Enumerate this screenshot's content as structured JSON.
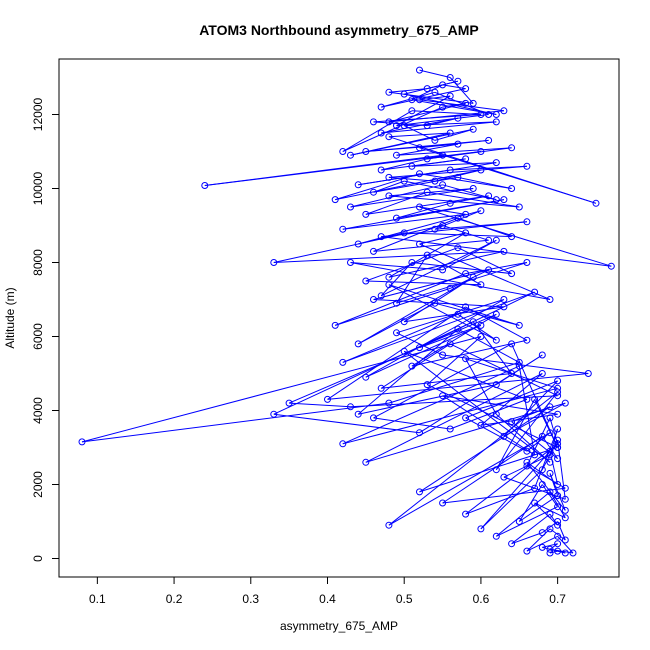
{
  "chart_data": {
    "type": "line",
    "title": "ATOM3 Northbound asymmetry_675_AMP",
    "xlabel": "asymmetry_675_AMP",
    "ylabel": "Altitude (m)",
    "xlim": [
      0.05,
      0.78
    ],
    "ylim": [
      -500,
      13500
    ],
    "x_ticks": [
      0.1,
      0.2,
      0.3,
      0.4,
      0.5,
      0.6,
      0.7
    ],
    "x_tick_labels": [
      "0.1",
      "0.2",
      "0.3",
      "0.4",
      "0.5",
      "0.6",
      "0.7"
    ],
    "y_ticks": [
      0,
      2000,
      4000,
      6000,
      8000,
      10000,
      12000
    ],
    "y_tick_labels": [
      "0",
      "2000",
      "4000",
      "6000",
      "8000",
      "10000",
      "12000"
    ],
    "grid": false,
    "legend": "none",
    "series_color": "#0000ff",
    "marker": "open-circle",
    "series": [
      {
        "x": [
          0.69,
          0.7,
          0.71,
          0.68,
          0.7,
          0.69,
          0.72,
          0.7,
          0.66,
          0.69,
          0.71,
          0.7,
          0.68,
          0.64,
          0.69,
          0.7,
          0.67,
          0.71,
          0.69,
          0.62,
          0.7,
          0.68,
          0.65,
          0.7,
          0.69,
          0.71,
          0.66,
          0.7,
          0.69,
          0.6,
          0.68,
          0.7,
          0.71,
          0.63,
          0.69,
          0.7,
          0.67,
          0.58,
          0.7,
          0.69,
          0.66,
          0.71,
          0.55,
          0.68,
          0.7,
          0.64,
          0.69,
          0.52,
          0.7,
          0.67,
          0.62,
          0.7,
          0.48,
          0.69,
          0.66,
          0.58,
          0.7,
          0.63,
          0.71,
          0.45,
          0.68,
          0.6,
          0.7,
          0.55,
          0.67,
          0.65,
          0.42,
          0.7,
          0.58,
          0.62,
          0.69,
          0.5,
          0.66,
          0.56,
          0.46,
          0.64,
          0.7,
          0.53,
          0.6,
          0.08,
          0.48,
          0.65,
          0.57,
          0.44,
          0.62,
          0.68,
          0.52,
          0.33,
          0.59,
          0.64,
          0.47,
          0.56,
          0.7,
          0.43,
          0.35,
          0.62,
          0.51,
          0.66,
          0.58,
          0.4,
          0.74,
          0.55,
          0.49,
          0.63,
          0.45,
          0.6,
          0.52,
          0.67,
          0.42,
          0.57,
          0.62,
          0.48,
          0.65,
          0.54,
          0.44,
          0.59,
          0.5,
          0.63,
          0.46,
          0.61,
          0.56,
          0.41,
          0.58,
          0.66,
          0.49,
          0.53,
          0.6,
          0.45,
          0.57,
          0.64,
          0.51,
          0.47,
          0.62,
          0.55,
          0.43,
          0.69,
          0.52,
          0.58,
          0.48,
          0.63,
          0.33,
          0.55,
          0.61,
          0.46,
          0.57,
          0.64,
          0.5,
          0.44,
          0.6,
          0.54,
          0.66,
          0.47,
          0.77,
          0.52,
          0.58,
          0.42,
          0.63,
          0.49,
          0.56,
          0.61,
          0.45,
          0.53,
          0.65,
          0.48,
          0.59,
          0.43,
          0.55,
          0.62,
          0.5,
          0.46,
          0.57,
          0.64,
          0.52,
          0.41,
          0.6,
          0.54,
          0.48,
          0.66,
          0.56,
          0.44,
          0.62,
          0.51,
          0.58,
          0.47,
          0.55,
          0.24,
          0.6,
          0.53,
          0.64,
          0.49,
          0.57,
          0.45,
          0.61,
          0.52,
          0.75,
          0.48,
          0.56,
          0.43,
          0.59,
          0.54,
          0.5,
          0.62,
          0.47,
          0.57,
          0.53,
          0.46,
          0.6,
          0.51,
          0.42,
          0.55,
          0.58,
          0.48,
          0.63,
          0.52,
          0.56,
          0.49,
          0.61,
          0.54,
          0.47,
          0.58,
          0.55,
          0.51,
          0.62,
          0.5,
          0.57,
          0.53,
          0.48,
          0.59,
          0.56,
          0.52
        ],
        "y": [
          150,
          200,
          150,
          300,
          400,
          250,
          150,
          600,
          200,
          800,
          500,
          1000,
          700,
          400,
          1200,
          900,
          1500,
          1100,
          1800,
          600,
          1400,
          2000,
          1000,
          1700,
          2300,
          1300,
          2600,
          2000,
          2900,
          800,
          2400,
          3200,
          1600,
          2200,
          2800,
          3500,
          1900,
          1200,
          3100,
          3800,
          2500,
          1900,
          1500,
          3300,
          2700,
          3700,
          4100,
          1800,
          3000,
          4300,
          2400,
          4500,
          900,
          3400,
          2900,
          3800,
          4800,
          3300,
          4200,
          2600,
          5000,
          3600,
          3900,
          4400,
          2800,
          5200,
          3100,
          4600,
          5400,
          3900,
          2600,
          5600,
          4300,
          3500,
          3800,
          5800,
          3000,
          4700,
          6000,
          3150,
          4200,
          5300,
          6200,
          3900,
          4700,
          5500,
          3400,
          3900,
          6400,
          5000,
          4600,
          5800,
          4400,
          4100,
          4200,
          6600,
          5200,
          5900,
          6800,
          4300,
          5000,
          5500,
          6100,
          7000,
          4900,
          6300,
          5700,
          7200,
          5300,
          6600,
          5900,
          7400,
          6300,
          6900,
          5800,
          7600,
          6400,
          6800,
          7000,
          7800,
          7300,
          6300,
          7700,
          8000,
          6900,
          8200,
          7400,
          7500,
          8400,
          7700,
          8000,
          7100,
          8600,
          7800,
          8000,
          7000,
          8500,
          8800,
          7600,
          8300,
          8000,
          9000,
          8600,
          8300,
          9200,
          8700,
          8800,
          8500,
          9400,
          8900,
          9100,
          8700,
          7900,
          9500,
          9300,
          8900,
          9700,
          9200,
          9600,
          9800,
          9300,
          9900,
          9500,
          9800,
          10000,
          9500,
          10100,
          9700,
          10200,
          9900,
          10300,
          10000,
          10400,
          9700,
          10500,
          10200,
          10300,
          10600,
          10500,
          10100,
          10700,
          10600,
          10800,
          10500,
          10900,
          10080,
          11000,
          10800,
          11100,
          10900,
          11200,
          11000,
          11300,
          11100,
          9600,
          11400,
          11500,
          10900,
          11600,
          11300,
          11700,
          11800,
          11500,
          11900,
          11700,
          11800,
          12000,
          12100,
          11000,
          12200,
          12300,
          11800,
          12100,
          12400,
          12500,
          11700,
          12000,
          12600,
          12200,
          12700,
          12800,
          12400,
          12000,
          12550,
          12900,
          12700,
          12600,
          12300,
          13000,
          13200
        ]
      }
    ]
  }
}
